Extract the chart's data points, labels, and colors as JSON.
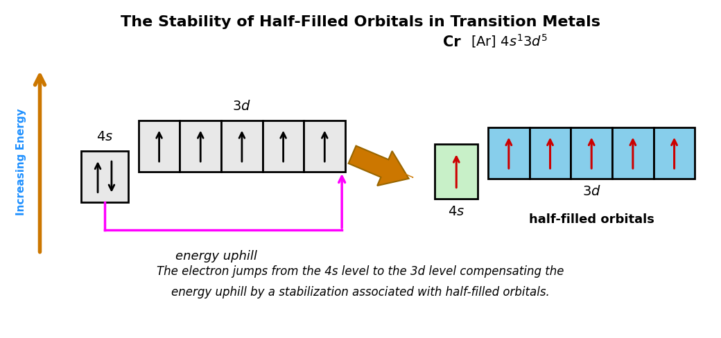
{
  "title": "The Stability of Half-Filled Orbitals in Transition Metals",
  "title_fontsize": 16,
  "background_color": "#ffffff",
  "arrow_color": "#CC7700",
  "magenta_color": "#FF00FF",
  "energy_uphill_text": "energy uphill",
  "left_box_fill": "#e8e8e8",
  "right_4s_fill": "#c8f0c8",
  "right_3d_fill": "#87CEEB",
  "black_arrow_color": "#000000",
  "red_arrow_color": "#cc0000",
  "blue_label_color": "#1E90FF",
  "increasing_energy_text": "Increasing Energy",
  "half_filled_text": "half-filled orbitals",
  "cr_text": "Cr",
  "config_text": "[Ar] 4",
  "bottom_text_line1": "The electron jumps from the 4s level to the 3d level compensating the",
  "bottom_text_line2": "energy uphill by a stabilization associated with half-filled orbitals."
}
